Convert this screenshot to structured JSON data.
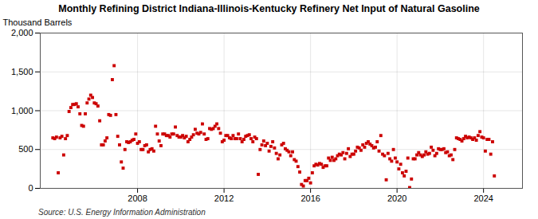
{
  "chart_data": {
    "type": "scatter",
    "title": "Monthly Refining District Indiana-Illinois-Kentucky Refinery Net Input of Natural Gasoline",
    "ylabel": "Thousand Barrels",
    "annotations": [
      "Source: U.S. Energy Information Administration"
    ],
    "color": "#cc0000",
    "marker": "square",
    "grid": true,
    "xlim": [
      2003.5,
      2025.8
    ],
    "xticks": [
      2008,
      2012,
      2016,
      2020,
      2024
    ],
    "ylim": [
      0,
      2000
    ],
    "yticks": [
      0,
      500,
      {
        "value": 1000,
        "label": "1,000"
      },
      {
        "value": 1500,
        "label": "1,500"
      },
      {
        "value": 2000,
        "label": "2,000"
      }
    ],
    "x": [
      2004.083,
      2004.167,
      2004.25,
      2004.333,
      2004.417,
      2004.5,
      2004.583,
      2004.667,
      2004.75,
      2004.833,
      2004.917,
      2005.0,
      2005.083,
      2005.167,
      2005.25,
      2005.333,
      2005.417,
      2005.5,
      2005.583,
      2005.667,
      2005.75,
      2005.833,
      2005.917,
      2006.0,
      2006.083,
      2006.167,
      2006.25,
      2006.333,
      2006.417,
      2006.5,
      2006.583,
      2006.667,
      2006.75,
      2006.833,
      2006.917,
      2007.0,
      2007.083,
      2007.167,
      2007.25,
      2007.333,
      2007.417,
      2007.5,
      2007.583,
      2007.667,
      2007.75,
      2007.833,
      2007.917,
      2008.0,
      2008.083,
      2008.167,
      2008.25,
      2008.333,
      2008.417,
      2008.5,
      2008.583,
      2008.667,
      2008.75,
      2008.833,
      2008.917,
      2009.0,
      2009.083,
      2009.167,
      2009.25,
      2009.333,
      2009.417,
      2009.5,
      2009.583,
      2009.667,
      2009.75,
      2009.833,
      2009.917,
      2010.0,
      2010.083,
      2010.167,
      2010.25,
      2010.333,
      2010.417,
      2010.5,
      2010.583,
      2010.667,
      2010.75,
      2010.833,
      2010.917,
      2011.0,
      2011.083,
      2011.167,
      2011.25,
      2011.333,
      2011.417,
      2011.5,
      2011.583,
      2011.667,
      2011.75,
      2011.833,
      2011.917,
      2012.0,
      2012.083,
      2012.167,
      2012.25,
      2012.333,
      2012.417,
      2012.5,
      2012.583,
      2012.667,
      2012.75,
      2012.833,
      2012.917,
      2013.0,
      2013.083,
      2013.167,
      2013.25,
      2013.333,
      2013.417,
      2013.5,
      2013.583,
      2013.667,
      2013.75,
      2013.833,
      2013.917,
      2014.0,
      2014.083,
      2014.167,
      2014.25,
      2014.333,
      2014.417,
      2014.5,
      2014.583,
      2014.667,
      2014.75,
      2014.833,
      2014.917,
      2015.0,
      2015.083,
      2015.167,
      2015.25,
      2015.333,
      2015.417,
      2015.5,
      2015.583,
      2015.667,
      2015.75,
      2015.833,
      2015.917,
      2016.0,
      2016.083,
      2016.167,
      2016.25,
      2016.333,
      2016.417,
      2016.5,
      2016.583,
      2016.667,
      2016.75,
      2016.833,
      2016.917,
      2017.0,
      2017.083,
      2017.167,
      2017.25,
      2017.333,
      2017.417,
      2017.5,
      2017.583,
      2017.667,
      2017.75,
      2017.833,
      2017.917,
      2018.0,
      2018.083,
      2018.167,
      2018.25,
      2018.333,
      2018.417,
      2018.5,
      2018.583,
      2018.667,
      2018.75,
      2018.833,
      2018.917,
      2019.0,
      2019.083,
      2019.167,
      2019.25,
      2019.333,
      2019.417,
      2019.5,
      2019.583,
      2019.667,
      2019.75,
      2019.833,
      2019.917,
      2020.0,
      2020.083,
      2020.167,
      2020.25,
      2020.333,
      2020.417,
      2020.5,
      2020.583,
      2020.667,
      2020.75,
      2020.833,
      2020.917,
      2021.0,
      2021.083,
      2021.167,
      2021.25,
      2021.333,
      2021.417,
      2021.5,
      2021.583,
      2021.667,
      2021.75,
      2021.833,
      2021.917,
      2022.0,
      2022.083,
      2022.167,
      2022.25,
      2022.333,
      2022.417,
      2022.5,
      2022.583,
      2022.667,
      2022.75,
      2022.833,
      2022.917,
      2023.0,
      2023.083,
      2023.167,
      2023.25,
      2023.333,
      2023.417,
      2023.5,
      2023.583,
      2023.667,
      2023.75,
      2023.833,
      2023.917,
      2024.0,
      2024.083,
      2024.167,
      2024.25,
      2024.333,
      2024.417,
      2024.5
    ],
    "values": [
      650,
      640,
      660,
      200,
      650,
      670,
      430,
      640,
      680,
      990,
      1040,
      1080,
      1080,
      1090,
      1050,
      960,
      810,
      800,
      960,
      1100,
      1150,
      1200,
      1170,
      1100,
      1090,
      1060,
      870,
      560,
      560,
      610,
      650,
      950,
      940,
      1400,
      1580,
      950,
      670,
      560,
      340,
      260,
      500,
      600,
      590,
      600,
      620,
      630,
      700,
      580,
      600,
      500,
      500,
      550,
      560,
      470,
      500,
      510,
      480,
      800,
      700,
      610,
      550,
      700,
      700,
      680,
      680,
      660,
      700,
      700,
      790,
      680,
      660,
      660,
      680,
      650,
      670,
      600,
      630,
      660,
      690,
      760,
      710,
      700,
      720,
      830,
      700,
      630,
      640,
      770,
      760,
      770,
      800,
      830,
      770,
      710,
      600,
      620,
      680,
      680,
      650,
      640,
      680,
      640,
      640,
      700,
      640,
      600,
      630,
      670,
      680,
      690,
      640,
      600,
      660,
      640,
      180,
      500,
      560,
      610,
      550,
      580,
      480,
      540,
      600,
      520,
      450,
      380,
      430,
      560,
      580,
      510,
      490,
      470,
      420,
      470,
      370,
      350,
      280,
      210,
      50,
      30,
      100,
      100,
      130,
      70,
      200,
      290,
      310,
      300,
      320,
      310,
      270,
      290,
      290,
      390,
      360,
      400,
      360,
      380,
      420,
      440,
      430,
      460,
      380,
      450,
      510,
      410,
      440,
      440,
      480,
      530,
      520,
      490,
      560,
      530,
      580,
      600,
      570,
      550,
      520,
      530,
      600,
      480,
      680,
      440,
      420,
      110,
      450,
      380,
      350,
      500,
      390,
      340,
      250,
      310,
      200,
      160,
      220,
      390,
      10,
      120,
      380,
      380,
      430,
      460,
      430,
      410,
      430,
      470,
      440,
      450,
      530,
      490,
      420,
      450,
      510,
      500,
      500,
      510,
      460,
      470,
      420,
      430,
      370,
      500,
      650,
      640,
      630,
      610,
      640,
      670,
      650,
      660,
      650,
      630,
      650,
      620,
      680,
      730,
      660,
      650,
      480,
      630,
      630,
      440,
      600,
      160
    ]
  }
}
